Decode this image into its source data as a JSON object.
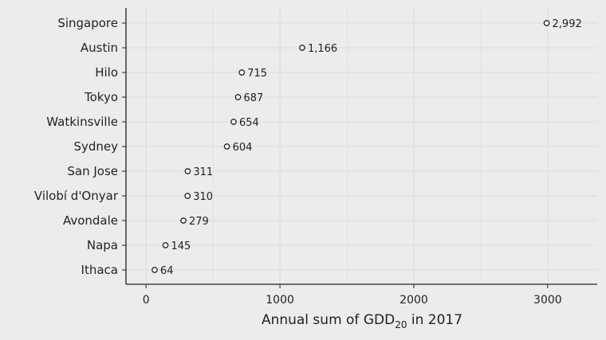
{
  "chart_data": {
    "type": "scatter",
    "orientation": "horizontal",
    "categories": [
      "Singapore",
      "Austin",
      "Hilo",
      "Tokyo",
      "Watkinsville",
      "Sydney",
      "San Jose",
      "Vilobí d'Onyar",
      "Avondale",
      "Napa",
      "Ithaca"
    ],
    "values": [
      2992,
      1166,
      715,
      687,
      654,
      604,
      311,
      310,
      279,
      145,
      64
    ],
    "value_labels": [
      "2,992",
      "1,166",
      "715",
      "687",
      "654",
      "604",
      "311",
      "310",
      "279",
      "145",
      "64"
    ],
    "title": "",
    "xlabel": {
      "main": "Annual sum of GDD",
      "subscript": "20",
      "suffix": " in 2017"
    },
    "ylabel": "",
    "xlim": [
      -150,
      3370
    ],
    "xticks": [
      0,
      1000,
      2000,
      3000
    ],
    "xtick_labels": [
      "0",
      "1000",
      "2000",
      "3000"
    ],
    "grid": true,
    "legend": "none",
    "colors": {
      "background": "#ececec",
      "grid": "#dcdcdc",
      "axis": "#222222",
      "marker_stroke": "#222222",
      "marker_fill": "#ffffff",
      "text": "#222222"
    }
  }
}
